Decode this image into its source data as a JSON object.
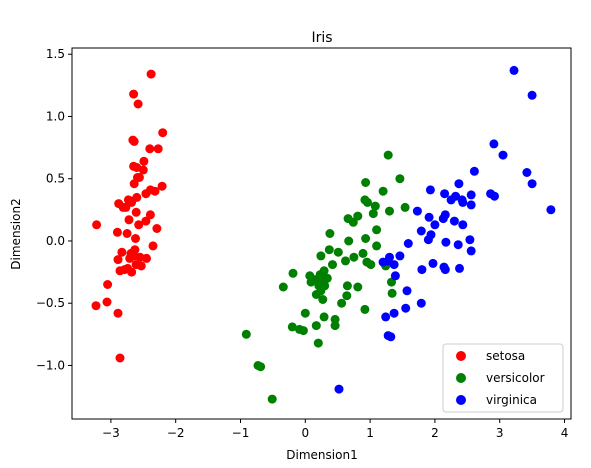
{
  "chart_data": {
    "type": "scatter",
    "title": "Iris",
    "xlabel": "Dimension1",
    "ylabel": "Dimension2",
    "xlim": [
      -3.6,
      4.1
    ],
    "ylim": [
      -1.43,
      1.55
    ],
    "xticks": [
      -3,
      -2,
      -1,
      0,
      1,
      2,
      3,
      4
    ],
    "yticks": [
      -1.0,
      -0.5,
      0.0,
      0.5,
      1.0,
      1.5
    ],
    "xtick_labels": [
      "−3",
      "−2",
      "−1",
      "0",
      "1",
      "2",
      "3",
      "4"
    ],
    "ytick_labels": [
      "−1.0",
      "−0.5",
      "0.0",
      "0.5",
      "1.0",
      "1.5"
    ],
    "grid": false,
    "legend_position": "bottom-right",
    "series": [
      {
        "name": "setosa",
        "color": "#ff0000",
        "points": [
          [
            -2.38,
            1.34
          ],
          [
            -2.65,
            1.18
          ],
          [
            -2.58,
            1.1
          ],
          [
            -2.2,
            0.87
          ],
          [
            -2.66,
            0.81
          ],
          [
            -2.64,
            0.8
          ],
          [
            -2.4,
            0.74
          ],
          [
            -2.49,
            0.64
          ],
          [
            -2.27,
            0.74
          ],
          [
            -2.5,
            0.57
          ],
          [
            -2.65,
            0.6
          ],
          [
            -2.6,
            0.59
          ],
          [
            -2.59,
            0.51
          ],
          [
            -2.56,
            0.51
          ],
          [
            -2.64,
            0.46
          ],
          [
            -2.39,
            0.41
          ],
          [
            -2.32,
            0.4
          ],
          [
            -2.21,
            0.44
          ],
          [
            -2.46,
            0.38
          ],
          [
            -2.6,
            0.35
          ],
          [
            -2.68,
            0.32
          ],
          [
            -2.73,
            0.33
          ],
          [
            -2.68,
            0.31
          ],
          [
            -2.88,
            0.3
          ],
          [
            -2.81,
            0.27
          ],
          [
            -2.77,
            0.27
          ],
          [
            -2.61,
            0.23
          ],
          [
            -2.39,
            0.21
          ],
          [
            -2.46,
            0.16
          ],
          [
            -2.72,
            0.17
          ],
          [
            -2.57,
            0.13
          ],
          [
            -2.29,
            0.1
          ],
          [
            -2.9,
            0.07
          ],
          [
            -2.75,
            0.06
          ],
          [
            -2.62,
            0.02
          ],
          [
            -2.35,
            -0.04
          ],
          [
            -2.63,
            -0.07
          ],
          [
            -2.83,
            -0.09
          ],
          [
            -2.69,
            -0.1
          ],
          [
            -2.55,
            -0.13
          ],
          [
            -2.64,
            -0.12
          ],
          [
            -2.71,
            -0.14
          ],
          [
            -2.89,
            -0.15
          ],
          [
            -2.45,
            -0.14
          ],
          [
            -2.53,
            -0.2
          ],
          [
            -2.61,
            -0.19
          ],
          [
            -2.74,
            -0.22
          ],
          [
            -2.79,
            -0.23
          ],
          [
            -2.68,
            -0.25
          ],
          [
            -2.86,
            -0.24
          ],
          [
            -3.22,
            0.13
          ],
          [
            -3.05,
            -0.35
          ],
          [
            -3.06,
            -0.49
          ],
          [
            -3.23,
            -0.52
          ],
          [
            -2.89,
            -0.58
          ],
          [
            -2.86,
            -0.94
          ]
        ]
      },
      {
        "name": "versicolor",
        "color": "#008000",
        "points": [
          [
            1.28,
            0.69
          ],
          [
            0.93,
            0.47
          ],
          [
            1.46,
            0.5
          ],
          [
            1.2,
            0.4
          ],
          [
            0.92,
            0.33
          ],
          [
            0.96,
            0.31
          ],
          [
            1.08,
            0.28
          ],
          [
            1.54,
            0.27
          ],
          [
            1.3,
            0.24
          ],
          [
            1.05,
            0.22
          ],
          [
            0.81,
            0.2
          ],
          [
            0.74,
            0.15
          ],
          [
            0.66,
            0.18
          ],
          [
            1.1,
            0.09
          ],
          [
            0.38,
            0.06
          ],
          [
            0.93,
            0.02
          ],
          [
            0.67,
            0.0
          ],
          [
            1.1,
            -0.04
          ],
          [
            0.37,
            -0.07
          ],
          [
            0.51,
            -0.09
          ],
          [
            0.24,
            -0.12
          ],
          [
            0.89,
            -0.1
          ],
          [
            0.75,
            -0.13
          ],
          [
            0.62,
            -0.16
          ],
          [
            0.95,
            -0.17
          ],
          [
            1.01,
            -0.19
          ],
          [
            1.24,
            -0.2
          ],
          [
            0.42,
            -0.19
          ],
          [
            0.29,
            -0.24
          ],
          [
            0.23,
            -0.27
          ],
          [
            0.07,
            -0.28
          ],
          [
            -0.19,
            -0.26
          ],
          [
            0.34,
            -0.3
          ],
          [
            0.15,
            -0.31
          ],
          [
            0.26,
            -0.33
          ],
          [
            0.09,
            -0.33
          ],
          [
            0.21,
            -0.36
          ],
          [
            0.3,
            -0.36
          ],
          [
            0.65,
            -0.36
          ],
          [
            0.81,
            -0.37
          ],
          [
            -0.34,
            -0.37
          ],
          [
            1.33,
            -0.33
          ],
          [
            0.24,
            -0.4
          ],
          [
            0.17,
            -0.43
          ],
          [
            1.34,
            -0.42
          ],
          [
            0.64,
            -0.44
          ],
          [
            0.27,
            -0.47
          ],
          [
            0.56,
            -0.5
          ],
          [
            0.92,
            -0.55
          ],
          [
            0.0,
            -0.58
          ],
          [
            0.29,
            -0.61
          ],
          [
            0.46,
            -0.63
          ],
          [
            -0.2,
            -0.69
          ],
          [
            0.17,
            -0.68
          ],
          [
            0.46,
            -0.68
          ],
          [
            -0.09,
            -0.71
          ],
          [
            -0.03,
            -0.72
          ],
          [
            0.2,
            -0.82
          ],
          [
            -0.91,
            -0.75
          ],
          [
            -0.73,
            -1.0
          ],
          [
            -0.69,
            -1.01
          ],
          [
            -0.51,
            -1.27
          ]
        ]
      },
      {
        "name": "virginica",
        "color": "#0000ff",
        "points": [
          [
            3.22,
            1.37
          ],
          [
            3.5,
            1.17
          ],
          [
            2.91,
            0.78
          ],
          [
            3.05,
            0.69
          ],
          [
            2.61,
            0.56
          ],
          [
            3.42,
            0.55
          ],
          [
            3.5,
            0.46
          ],
          [
            2.37,
            0.46
          ],
          [
            1.93,
            0.41
          ],
          [
            2.15,
            0.38
          ],
          [
            2.32,
            0.36
          ],
          [
            2.25,
            0.33
          ],
          [
            2.86,
            0.38
          ],
          [
            2.43,
            0.31
          ],
          [
            2.56,
            0.29
          ],
          [
            2.42,
            0.33
          ],
          [
            2.56,
            0.37
          ],
          [
            2.92,
            0.36
          ],
          [
            3.79,
            0.25
          ],
          [
            1.73,
            0.24
          ],
          [
            2.16,
            0.21
          ],
          [
            1.91,
            0.19
          ],
          [
            2.13,
            0.18
          ],
          [
            2.3,
            0.16
          ],
          [
            2.0,
            0.13
          ],
          [
            2.43,
            0.13
          ],
          [
            1.79,
            0.08
          ],
          [
            1.94,
            0.05
          ],
          [
            1.9,
            0.01
          ],
          [
            2.54,
            0.01
          ],
          [
            2.17,
            -0.01
          ],
          [
            2.36,
            -0.03
          ],
          [
            1.59,
            -0.02
          ],
          [
            2.56,
            -0.08
          ],
          [
            1.46,
            -0.12
          ],
          [
            1.3,
            -0.13
          ],
          [
            1.28,
            -0.16
          ],
          [
            1.2,
            -0.17
          ],
          [
            1.37,
            -0.19
          ],
          [
            1.97,
            -0.18
          ],
          [
            2.14,
            -0.21
          ],
          [
            2.38,
            -0.22
          ],
          [
            2.16,
            -0.23
          ],
          [
            1.8,
            -0.23
          ],
          [
            1.39,
            -0.28
          ],
          [
            1.57,
            -0.4
          ],
          [
            1.79,
            -0.5
          ],
          [
            1.55,
            -0.54
          ],
          [
            1.37,
            -0.58
          ],
          [
            1.24,
            -0.61
          ],
          [
            1.28,
            -0.76
          ],
          [
            1.32,
            -0.77
          ],
          [
            0.52,
            -1.19
          ]
        ]
      }
    ]
  }
}
